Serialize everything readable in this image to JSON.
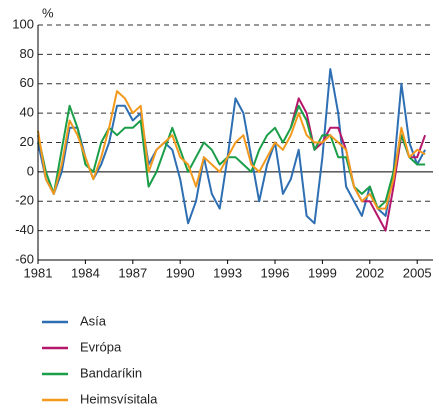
{
  "chart_data": {
    "type": "line",
    "y_unit": "%",
    "x": [
      1981,
      1981.5,
      1982,
      1982.5,
      1983,
      1983.5,
      1984,
      1984.5,
      1985,
      1985.5,
      1986,
      1986.5,
      1987,
      1987.5,
      1988,
      1988.5,
      1989,
      1989.5,
      1990,
      1990.5,
      1991,
      1991.5,
      1992,
      1992.5,
      1993,
      1993.5,
      1994,
      1994.5,
      1995,
      1995.5,
      1996,
      1996.5,
      1997,
      1997.5,
      1998,
      1998.5,
      1999,
      1999.5,
      2000,
      2000.5,
      2001,
      2001.5,
      2002,
      2002.5,
      2003,
      2003.5,
      2004,
      2004.5,
      2005,
      2005.5
    ],
    "series": [
      {
        "name": "Asía",
        "color": "#2e6fb3",
        "values": [
          20,
          -5,
          -15,
          0,
          30,
          30,
          10,
          -5,
          5,
          20,
          45,
          45,
          35,
          40,
          5,
          15,
          20,
          15,
          -5,
          -35,
          -20,
          10,
          -15,
          -25,
          10,
          50,
          40,
          10,
          -20,
          5,
          20,
          -15,
          -5,
          15,
          -30,
          -35,
          10,
          70,
          40,
          -10,
          -20,
          -30,
          -10,
          -25,
          -30,
          0,
          60,
          20,
          5,
          15
        ]
      },
      {
        "name": "Evrópa",
        "color": "#b5176b",
        "values": [
          null,
          null,
          null,
          null,
          null,
          null,
          null,
          null,
          null,
          null,
          null,
          null,
          null,
          null,
          null,
          null,
          null,
          null,
          null,
          null,
          null,
          null,
          null,
          null,
          null,
          null,
          null,
          null,
          null,
          null,
          null,
          null,
          30,
          50,
          40,
          15,
          20,
          30,
          30,
          15,
          -10,
          -20,
          -20,
          -30,
          -40,
          -10,
          25,
          10,
          10,
          25
        ]
      },
      {
        "name": "Bandaríkin",
        "color": "#1a9e48",
        "values": [
          25,
          0,
          -15,
          15,
          45,
          30,
          5,
          0,
          20,
          30,
          25,
          30,
          30,
          35,
          -10,
          0,
          15,
          30,
          15,
          0,
          10,
          20,
          15,
          5,
          10,
          10,
          5,
          0,
          15,
          25,
          30,
          20,
          30,
          45,
          35,
          15,
          25,
          25,
          10,
          10,
          -10,
          -15,
          -10,
          -25,
          -20,
          0,
          25,
          10,
          5,
          5
        ]
      },
      {
        "name": "Heimsvísitala",
        "color": "#f39a1e",
        "values": [
          28,
          -5,
          -15,
          5,
          35,
          25,
          10,
          -5,
          10,
          30,
          55,
          50,
          40,
          45,
          0,
          15,
          20,
          25,
          10,
          5,
          -10,
          10,
          5,
          0,
          10,
          20,
          25,
          5,
          0,
          10,
          20,
          15,
          25,
          40,
          25,
          20,
          20,
          25,
          20,
          15,
          -10,
          -20,
          -15,
          -25,
          -25,
          -5,
          30,
          10,
          15,
          12
        ]
      }
    ],
    "xlim": [
      1981,
      2006
    ],
    "xticks": [
      1981,
      1984,
      1987,
      1990,
      1993,
      1996,
      1999,
      2002,
      2005
    ],
    "ylim": [
      -60,
      100
    ],
    "yticks": [
      -60,
      -40,
      -20,
      0,
      20,
      40,
      60,
      80,
      100
    ],
    "grid": true
  }
}
